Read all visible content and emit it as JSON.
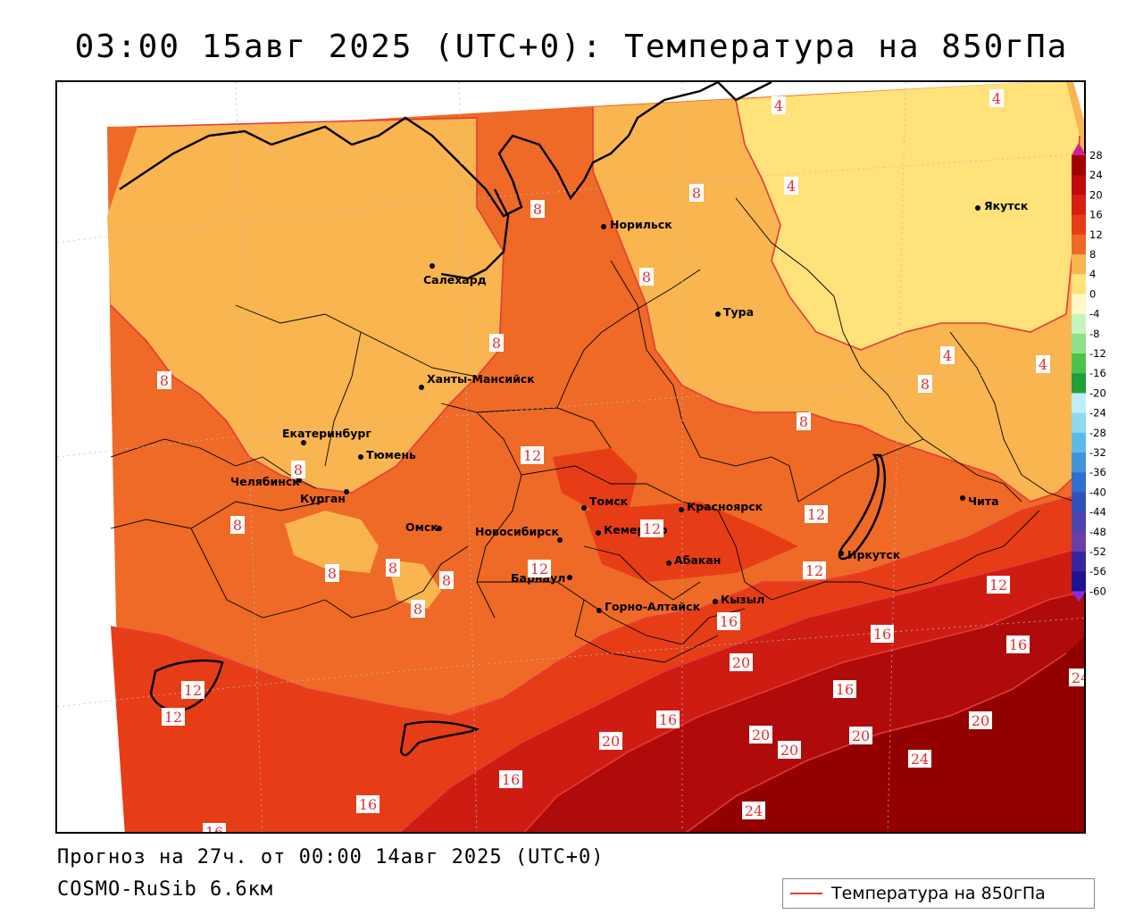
{
  "title": "03:00 15авг 2025 (UTC+0): Температура на 850гПа",
  "footer": {
    "forecast": "Прогноз на 27ч. от 00:00 14авг 2025 (UTC+0)",
    "model": "COSMO-RuSib 6.6км"
  },
  "legend": {
    "label": "Температура на 850гПа",
    "line_color": "#e53a3a"
  },
  "colors": {
    "z0_4": "#ffe27a",
    "z4_8": "#f8b550",
    "z8_12": "#ee6a26",
    "z12_16": "#e63d17",
    "z16_20": "#cf1c12",
    "z20_24": "#b00b0b",
    "z24_28": "#920000",
    "isoline": "#e53a3a"
  },
  "colorbar": {
    "ticks": [
      "28",
      "24",
      "20",
      "16",
      "12",
      "8",
      "4",
      "0",
      "-4",
      "-8",
      "-12",
      "-16",
      "-20",
      "-24",
      "-28",
      "-32",
      "-36",
      "-40",
      "-44",
      "-48",
      "-52",
      "-56",
      "-60"
    ],
    "colors": [
      "#a30000",
      "#c10b0b",
      "#d5200f",
      "#e63d17",
      "#ee6a26",
      "#f8b550",
      "#ffe27a",
      "#fff7c6",
      "#c8f3c0",
      "#8ee08a",
      "#4cc24c",
      "#1f9e3a",
      "#bfeef6",
      "#8fd8ef",
      "#5cbbe6",
      "#3f95d8",
      "#2f6fd0",
      "#3053b9",
      "#4d44b0",
      "#6a3ea8",
      "#3526a0",
      "#1c1490"
    ]
  },
  "cities": [
    {
      "name": "Норильск"
    },
    {
      "name": "Салехард"
    },
    {
      "name": "Тура"
    },
    {
      "name": "Якутск"
    },
    {
      "name": "Ханты-Мансийск"
    },
    {
      "name": "Екатеринбург"
    },
    {
      "name": "Тюмень"
    },
    {
      "name": "Челябинск"
    },
    {
      "name": "Курган"
    },
    {
      "name": "Омск"
    },
    {
      "name": "Новосибирск"
    },
    {
      "name": "Томск"
    },
    {
      "name": "Кемерово"
    },
    {
      "name": "Красноярск"
    },
    {
      "name": "Барнаул"
    },
    {
      "name": "Абакан"
    },
    {
      "name": "Горно-Алтайск"
    },
    {
      "name": "Кызыл"
    },
    {
      "name": "Иркутск"
    },
    {
      "name": "Чита"
    }
  ],
  "isotherm_labels": [
    "4",
    "4",
    "4",
    "4",
    "4",
    "8",
    "8",
    "8",
    "8",
    "8",
    "8",
    "8",
    "8",
    "8",
    "8",
    "8",
    "8",
    "8",
    "12",
    "12",
    "12",
    "12",
    "12",
    "12",
    "12",
    "12",
    "16",
    "16",
    "16",
    "16",
    "16",
    "16",
    "16",
    "16",
    "20",
    "20",
    "20",
    "20",
    "20",
    "20",
    "24",
    "24",
    "24"
  ]
}
